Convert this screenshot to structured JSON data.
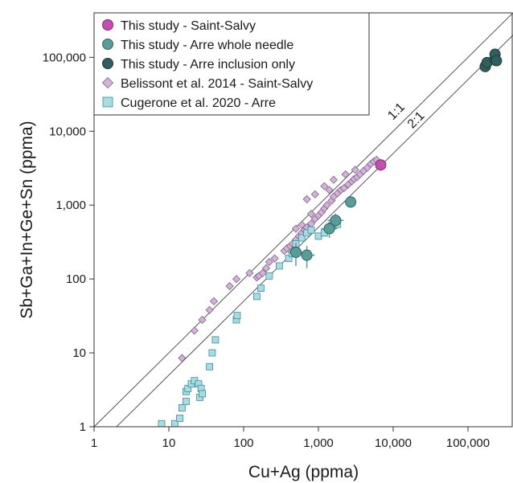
{
  "chart_data": {
    "type": "scatter",
    "title": "",
    "xlabel": "Cu+Ag (ppma)",
    "ylabel": "Sb+Ga+In+Ge+Sn (ppma)",
    "xscale": "log",
    "yscale": "log",
    "xlim": [
      1,
      400000
    ],
    "ylim": [
      1,
      400000
    ],
    "x_ticks": [
      {
        "value": 1,
        "label": "1"
      },
      {
        "value": 10,
        "label": "10"
      },
      {
        "value": 100,
        "label": "100"
      },
      {
        "value": 1000,
        "label": "1,000"
      },
      {
        "value": 10000,
        "label": "10,000"
      },
      {
        "value": 100000,
        "label": "100,000"
      }
    ],
    "y_ticks": [
      {
        "value": 1,
        "label": "1"
      },
      {
        "value": 10,
        "label": "10"
      },
      {
        "value": 100,
        "label": "100"
      },
      {
        "value": 1000,
        "label": "1,000"
      },
      {
        "value": 10000,
        "label": "10,000"
      },
      {
        "value": 100000,
        "label": "100,000"
      }
    ],
    "grid": false,
    "legend_position": "top-left",
    "reference_lines": [
      {
        "label": "1:1",
        "ratio": 1
      },
      {
        "label": "2:1",
        "ratio": 2
      }
    ],
    "series": [
      {
        "name": "This study - Saint-Salvy",
        "marker": "circle",
        "color": "#c44fb0",
        "stroke": "#7a2a6e",
        "points": [
          [
            6800,
            3500
          ]
        ]
      },
      {
        "name": "This study - Arre whole needle",
        "marker": "circle",
        "color": "#5a9c9a",
        "stroke": "#2f6462",
        "points": [
          [
            500,
            230,
            80
          ],
          [
            700,
            210,
            70
          ],
          [
            1400,
            480,
            120
          ],
          [
            1700,
            620,
            150
          ],
          [
            2700,
            1100,
            0
          ]
        ]
      },
      {
        "name": "This study - Arre inclusion only",
        "marker": "circle",
        "color": "#2e5f5d",
        "stroke": "#1a3b3a",
        "points": [
          [
            170000,
            75000
          ],
          [
            180000,
            85000
          ],
          [
            230000,
            95000
          ],
          [
            230000,
            110000
          ],
          [
            240000,
            90000
          ]
        ]
      },
      {
        "name": "Belissont et al. 2014 - Saint-Salvy",
        "marker": "diamond",
        "color": "#d4b2d9",
        "stroke": "#7d6385",
        "points": [
          [
            15,
            8.5
          ],
          [
            22,
            20
          ],
          [
            28,
            28
          ],
          [
            35,
            38
          ],
          [
            40,
            50
          ],
          [
            65,
            80
          ],
          [
            80,
            100
          ],
          [
            120,
            120
          ],
          [
            150,
            105
          ],
          [
            160,
            110
          ],
          [
            180,
            120
          ],
          [
            200,
            140
          ],
          [
            220,
            170
          ],
          [
            260,
            190
          ],
          [
            350,
            240
          ],
          [
            380,
            260
          ],
          [
            420,
            280
          ],
          [
            450,
            300
          ],
          [
            500,
            340
          ],
          [
            550,
            380
          ],
          [
            600,
            420
          ],
          [
            650,
            460
          ],
          [
            700,
            500
          ],
          [
            800,
            560
          ],
          [
            900,
            650
          ],
          [
            1000,
            720
          ],
          [
            1100,
            800
          ],
          [
            1200,
            900
          ],
          [
            1300,
            1000
          ],
          [
            1500,
            1150
          ],
          [
            1600,
            1300
          ],
          [
            1800,
            1450
          ],
          [
            2000,
            1600
          ],
          [
            2200,
            1700
          ],
          [
            2500,
            1900
          ],
          [
            2800,
            2100
          ],
          [
            3000,
            2250
          ],
          [
            3300,
            2400
          ],
          [
            3600,
            2600
          ],
          [
            4000,
            2900
          ],
          [
            4500,
            3200
          ],
          [
            5000,
            3600
          ],
          [
            5500,
            3900
          ],
          [
            6000,
            4100
          ],
          [
            1200,
            1800
          ],
          [
            900,
            1400
          ],
          [
            700,
            1200
          ],
          [
            1600,
            2200
          ],
          [
            2300,
            2600
          ],
          [
            3100,
            3000
          ],
          [
            500,
            480
          ],
          [
            600,
            540
          ],
          [
            800,
            760
          ],
          [
            1400,
            1600
          ]
        ]
      },
      {
        "name": "Cugerone et al. 2020 - Arre",
        "marker": "square",
        "color": "#a8dce2",
        "stroke": "#3c8d97",
        "points": [
          [
            8,
            1.1
          ],
          [
            12,
            1.1
          ],
          [
            14,
            1.3
          ],
          [
            15,
            1.8
          ],
          [
            17,
            2.2
          ],
          [
            17,
            3
          ],
          [
            18,
            3.3
          ],
          [
            20,
            3.8
          ],
          [
            22,
            4.2
          ],
          [
            25,
            3.8
          ],
          [
            26,
            2.5
          ],
          [
            27,
            3.3
          ],
          [
            28,
            2.8
          ],
          [
            35,
            6.5
          ],
          [
            38,
            10
          ],
          [
            42,
            15
          ],
          [
            80,
            28
          ],
          [
            82,
            32
          ],
          [
            150,
            58
          ],
          [
            170,
            75
          ],
          [
            220,
            110
          ],
          [
            300,
            150
          ],
          [
            400,
            190
          ],
          [
            450,
            220
          ],
          [
            500,
            300
          ],
          [
            600,
            360
          ],
          [
            700,
            420
          ],
          [
            800,
            460
          ],
          [
            1000,
            380
          ],
          [
            1200,
            420
          ],
          [
            1500,
            520
          ],
          [
            1800,
            550
          ]
        ]
      }
    ]
  }
}
